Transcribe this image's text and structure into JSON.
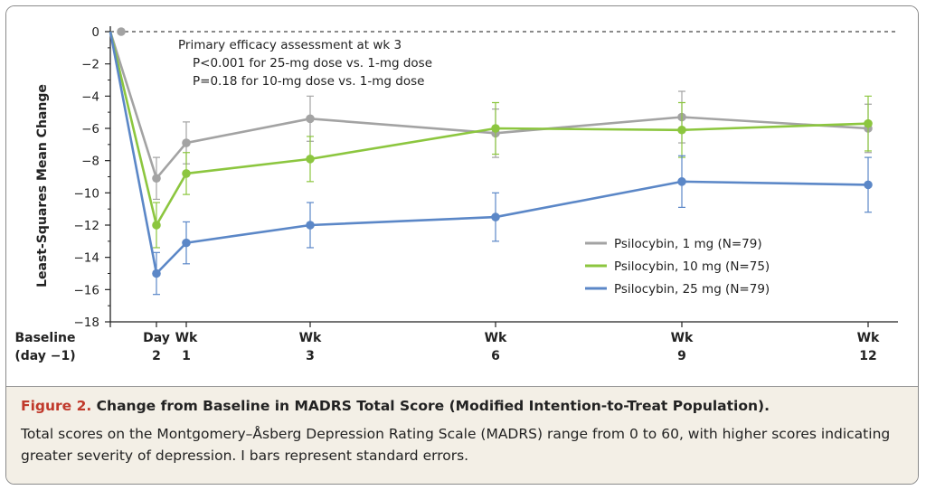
{
  "chart_data": {
    "type": "line",
    "ylabel": "Least-Squares Mean Change",
    "ylim": [
      -18,
      0
    ],
    "yticks": [
      0,
      -2,
      -4,
      -6,
      -8,
      -10,
      -12,
      -14,
      -16,
      -18
    ],
    "ytick_labels": [
      "0",
      "−2",
      "−4",
      "−6",
      "−8",
      "−10",
      "−12",
      "−14",
      "−16",
      "−18"
    ],
    "x_days": [
      0,
      2,
      7,
      21,
      42,
      63,
      84
    ],
    "xtick_labels": [
      {
        "line1": "Baseline",
        "line2": "(day −1)"
      },
      {
        "line1": "Day",
        "line2": "2"
      },
      {
        "line1": "Wk",
        "line2": "1"
      },
      {
        "line1": "Wk",
        "line2": "3"
      },
      {
        "line1": "Wk",
        "line2": "6"
      },
      {
        "line1": "Wk",
        "line2": "9"
      },
      {
        "line1": "Wk",
        "line2": "12"
      }
    ],
    "annotation": [
      "Primary efficacy assessment at wk 3",
      "P<0.001 for 25-mg dose vs. 1-mg dose",
      "P=0.18 for 10-mg dose vs. 1-mg dose"
    ],
    "legend_position": "lower-right",
    "series": [
      {
        "name": "Psilocybin, 1 mg (N=79)",
        "color": "#a3a3a3",
        "values": [
          0,
          -9.1,
          -6.9,
          -5.4,
          -6.3,
          -5.3,
          -6.0
        ],
        "se": [
          0,
          1.3,
          1.3,
          1.4,
          1.5,
          1.6,
          1.5
        ]
      },
      {
        "name": "Psilocybin, 10 mg (N=75)",
        "color": "#8cc63f",
        "values": [
          0,
          -12.0,
          -8.8,
          -7.9,
          -6.0,
          -6.1,
          -5.7
        ],
        "se": [
          0,
          1.4,
          1.3,
          1.4,
          1.6,
          1.7,
          1.7
        ]
      },
      {
        "name": "Psilocybin, 25 mg (N=79)",
        "color": "#5b87c7",
        "values": [
          0,
          -15.0,
          -13.1,
          -12.0,
          -11.5,
          -9.3,
          -9.5
        ],
        "se": [
          0,
          1.3,
          1.3,
          1.4,
          1.5,
          1.6,
          1.7
        ]
      }
    ]
  },
  "caption": {
    "figure_label": "Figure 2.",
    "title": "Change from Baseline in MADRS Total Score (Modified Intention-to-Treat Population).",
    "text": "Total scores on the Montgomery–Åsberg Depression Rating Scale (MADRS) range from 0 to 60, with higher scores indicating greater severity of depression. I bars represent standard errors."
  }
}
